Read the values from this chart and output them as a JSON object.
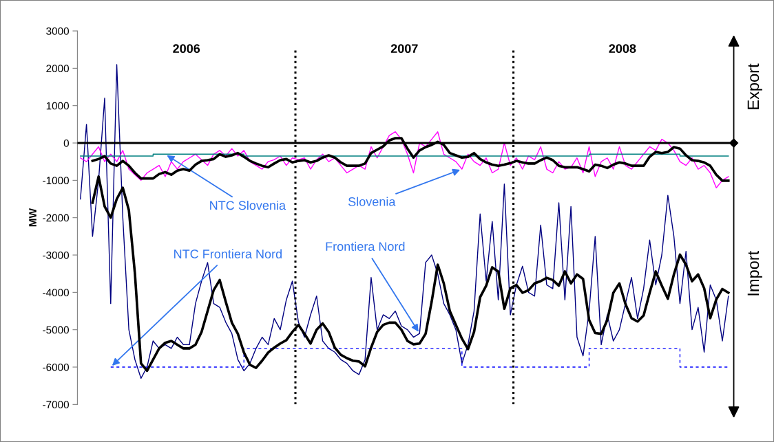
{
  "chart_data": {
    "type": "line",
    "ylabel": "MW",
    "categories": [
      null,
      null,
      null,
      null,
      null,
      null,
      null,
      null,
      null,
      null,
      null,
      null,
      null,
      null,
      null,
      null,
      null,
      null,
      null,
      null,
      null,
      null,
      null,
      null,
      null,
      null,
      null,
      null,
      null,
      null,
      null,
      null,
      null,
      null,
      null,
      null,
      null,
      null,
      null,
      null,
      null,
      null,
      null,
      null,
      null,
      null,
      null,
      null,
      null,
      null,
      null,
      null,
      null,
      null,
      null,
      null,
      null,
      null,
      null,
      null,
      null,
      null,
      null,
      null,
      null,
      null,
      null,
      null,
      null,
      null,
      null,
      null,
      null,
      null,
      null,
      null,
      null,
      null,
      null,
      null,
      null,
      null,
      null,
      null,
      null,
      null,
      null,
      null,
      null,
      null,
      null,
      null,
      null,
      null,
      null,
      null,
      null,
      null,
      null,
      null,
      null,
      null,
      null,
      null,
      null,
      null,
      null,
      null
    ],
    "ylim": [
      -7000,
      3000
    ],
    "yticks": [
      -7000,
      -6000,
      -5000,
      -4000,
      -3000,
      -2000,
      -1000,
      0,
      1000,
      2000,
      3000
    ],
    "tick_labels": "y",
    "series": [
      {
        "name": "Frontiera Nord",
        "color": "#000080",
        "values": [
          -1500,
          500,
          -2500,
          -1000,
          1200,
          -4300,
          2100,
          -2000,
          -5000,
          -5800,
          -6300,
          -6000,
          -5300,
          -5500,
          -5400,
          -5500,
          -5200,
          -5400,
          -5400,
          -4300,
          -3700,
          -3200,
          -4300,
          -4400,
          -4800,
          -5100,
          -5800,
          -6100,
          -5900,
          -5500,
          -5200,
          -5400,
          -4700,
          -5000,
          -4200,
          -3700,
          -4800,
          -5200,
          -4600,
          -4100,
          -5300,
          -5500,
          -5600,
          -5800,
          -5900,
          -6100,
          -6200,
          -5800,
          -3600,
          -5000,
          -4600,
          -4700,
          -4500,
          -4900,
          -5000,
          -5200,
          -5100,
          -3200,
          -3000,
          -3500,
          -4300,
          -4600,
          -5000,
          -5900,
          -5400,
          -4500,
          -1900,
          -3700,
          -2100,
          -4200,
          -1100,
          -4600,
          -3800,
          -3300,
          -4000,
          -4100,
          -2200,
          -3800,
          -3900,
          -1600,
          -4200,
          -1700,
          -5200,
          -5700,
          -4500,
          -2500,
          -5400,
          -4600,
          -5300,
          -5000,
          -4300,
          -3600,
          -4700,
          -3900,
          -2600,
          -3800,
          -3000,
          -1400,
          -2500,
          -4300,
          -2900,
          -5000,
          -4400,
          -5600,
          -3800,
          -4200,
          -5300,
          -4100
        ]
      },
      {
        "color": "#000000",
        "values": [
          null,
          null,
          -1600,
          -900,
          -1700,
          -2000,
          -1500,
          -1200,
          -1800,
          -3500,
          -5900,
          -6100,
          -5800,
          -5500,
          -5350,
          -5300,
          -5400,
          -5500,
          -5500,
          -5400,
          -5060,
          -4500,
          -3940,
          -3670,
          -4250,
          -4810,
          -5110,
          -5610,
          -5940,
          -6020,
          -5830,
          -5610,
          -5480,
          -5370,
          -5280,
          -5060,
          -4870,
          -5110,
          -5370,
          -5000,
          -4830,
          -5060,
          -5480,
          -5670,
          -5760,
          -5830,
          -5850,
          -5980,
          -5480,
          -5060,
          -4870,
          -4810,
          -4810,
          -5000,
          -5300,
          -5390,
          -5370,
          -5110,
          -4250,
          -3260,
          -3760,
          -4500,
          -4870,
          -5240,
          -5520,
          -5060,
          -4130,
          -3820,
          -3330,
          -3440,
          -4440,
          -3890,
          -3800,
          -4010,
          -3940,
          -3760,
          -3700,
          -3610,
          -3670,
          -3820,
          -3440,
          -3760,
          -3520,
          -3640,
          -4740,
          -5090,
          -5110,
          -4740,
          -4010,
          -3760,
          -4310,
          -4690,
          -4780,
          -4620,
          -4010,
          -3440,
          -3820,
          -4170,
          -3520,
          -2990,
          -3260,
          -3700,
          -3520,
          -3890,
          -4690,
          -4190,
          -3910,
          -4010
        ]
      },
      {
        "name": "Slovenia",
        "color": "#ff00ff",
        "values": [
          -400,
          -500,
          -300,
          -100,
          -500,
          -300,
          -500,
          -200,
          -700,
          -850,
          -1000,
          -800,
          -700,
          -600,
          -900,
          -500,
          -700,
          -500,
          -400,
          -300,
          -450,
          -600,
          -300,
          -200,
          -350,
          -150,
          -350,
          -200,
          -500,
          -600,
          -700,
          -500,
          -450,
          -350,
          -600,
          -400,
          -450,
          -400,
          -700,
          -450,
          -300,
          -500,
          -400,
          -600,
          -800,
          -700,
          -600,
          -700,
          -100,
          -400,
          -100,
          200,
          300,
          100,
          -300,
          -800,
          0,
          -100,
          100,
          300,
          -300,
          -400,
          -500,
          -700,
          -300,
          -500,
          -600,
          -400,
          -800,
          -700,
          0,
          -600,
          -400,
          -700,
          -350,
          -450,
          -100,
          -700,
          -800,
          -500,
          -700,
          -650,
          -400,
          -800,
          -100,
          -900,
          -500,
          -400,
          -700,
          -100,
          -600,
          -700,
          -500,
          -300,
          -100,
          -200,
          100,
          0,
          -200,
          -500,
          -600,
          -400,
          -700,
          -600,
          -800,
          -1200,
          -1000,
          -900
        ]
      },
      {
        "color": "#000000",
        "values": [
          null,
          null,
          -480,
          -430,
          -350,
          -550,
          -610,
          -480,
          -610,
          -800,
          -950,
          -950,
          -950,
          -830,
          -780,
          -850,
          -740,
          -700,
          -740,
          -580,
          -480,
          -460,
          -430,
          -300,
          -370,
          -330,
          -270,
          -370,
          -480,
          -550,
          -610,
          -650,
          -550,
          -460,
          -430,
          -520,
          -480,
          -460,
          -520,
          -480,
          -390,
          -330,
          -390,
          -520,
          -610,
          -610,
          -610,
          -550,
          -270,
          -180,
          -90,
          70,
          130,
          130,
          -150,
          -390,
          -200,
          -110,
          -50,
          30,
          -50,
          -270,
          -330,
          -390,
          -370,
          -270,
          -430,
          -520,
          -580,
          -610,
          -580,
          -540,
          -480,
          -520,
          -550,
          -550,
          -460,
          -390,
          -460,
          -610,
          -650,
          -650,
          -650,
          -700,
          -760,
          -580,
          -610,
          -670,
          -580,
          -520,
          -550,
          -610,
          -610,
          -610,
          -370,
          -240,
          -270,
          -240,
          -110,
          -150,
          -330,
          -460,
          -480,
          -520,
          -610,
          -850,
          -1010,
          -1010
        ]
      },
      {
        "name": "NTC Slovenia",
        "type": "step",
        "color": "#008080",
        "values": [
          -350,
          -350,
          -350,
          -350,
          -350,
          -350,
          -350,
          -350,
          -350,
          -350,
          -350,
          -350,
          -300,
          -300,
          -300,
          -300,
          -300,
          -300,
          -300,
          -300,
          -300,
          -300,
          -300,
          -300,
          -300,
          -300,
          -300,
          -350,
          -350,
          -350,
          -350,
          -350,
          -350,
          -350,
          -350,
          -350,
          -350,
          -350,
          -350,
          -350,
          -350,
          -350,
          -350,
          -350,
          -350,
          -350,
          -350,
          -350,
          -350,
          -350,
          -350,
          -350,
          -350,
          -350,
          -350,
          -350,
          -350,
          -350,
          -350,
          -350,
          -350,
          -350,
          -350,
          -350,
          -350,
          -350,
          -350,
          -350,
          -350,
          -350,
          -350,
          -350,
          -350,
          -350,
          -350,
          -350,
          -350,
          -350,
          -350,
          -350,
          -350,
          -350,
          -350,
          -350,
          -300,
          -300,
          -300,
          -300,
          -300,
          -300,
          -300,
          -300,
          -300,
          -300,
          -300,
          -300,
          -300,
          -300,
          -300,
          -350,
          -350,
          -350,
          -350,
          -350,
          -350,
          -350,
          -350,
          -350
        ]
      },
      {
        "name": "NTC Frontiera Nord",
        "type": "step",
        "color": "#0000ff",
        "line_style": "dashed",
        "values": [
          null,
          null,
          null,
          null,
          null,
          -6000,
          -6000,
          -6000,
          -6000,
          -6000,
          -6000,
          -6000,
          -6000,
          -6000,
          -6000,
          -6000,
          -6000,
          -6000,
          -6000,
          -6000,
          -6000,
          -6000,
          -6000,
          -6000,
          -6000,
          -6000,
          -6000,
          -5500,
          -5500,
          -5500,
          -5500,
          -5500,
          -5500,
          -5500,
          -5500,
          -5500,
          -5500,
          -5500,
          -5500,
          -5500,
          -5500,
          -5500,
          -5500,
          -5500,
          -5500,
          -5500,
          -5500,
          -5500,
          -5500,
          -5500,
          -5500,
          -5500,
          -5500,
          -5500,
          -5500,
          -5500,
          -5500,
          -5500,
          -5500,
          -5500,
          -5500,
          -5500,
          -5500,
          -6000,
          -6000,
          -6000,
          -6000,
          -6000,
          -6000,
          -6000,
          -6000,
          -6000,
          -6000,
          -6000,
          -6000,
          -6000,
          -6000,
          -6000,
          -6000,
          -6000,
          -6000,
          -6000,
          -6000,
          -6000,
          -5500,
          -5500,
          -5500,
          -5500,
          -5500,
          -5500,
          -5500,
          -5500,
          -5500,
          -5500,
          -5500,
          -5500,
          -5500,
          -5500,
          -5500,
          -6000,
          -6000,
          -6000,
          -6000,
          -6000,
          -6000,
          -6000,
          -6000,
          -6000
        ]
      }
    ],
    "ref_lines": [
      {
        "axis": "y",
        "value": 0,
        "color": "#000000",
        "line_style": "solid"
      }
    ],
    "annotations": [
      "2006",
      "2007",
      "2008",
      "Export",
      "Import"
    ]
  }
}
